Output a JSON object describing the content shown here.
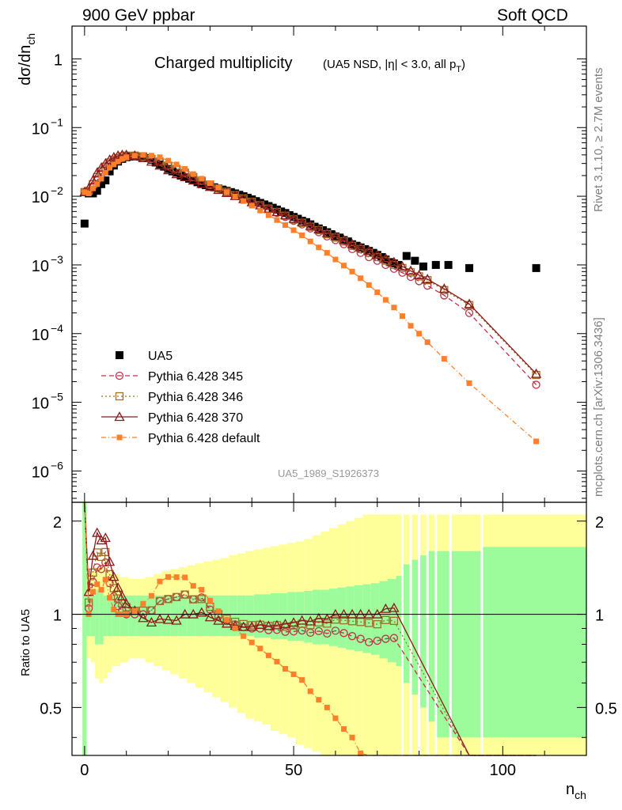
{
  "header": {
    "left": "900 GeV ppbar",
    "right": "Soft QCD"
  },
  "side_labels": {
    "rivet": "Rivet 3.1.10, ≥ 2.7M events",
    "mcplots": "mcplots.cern.ch [arXiv:1306.3436]"
  },
  "chart_data": {
    "type": "scatter",
    "title": "Charged multiplicity",
    "subtitle": "(UA5 NSD, |η| < 3.0, all p_T)",
    "analysis_id": "UA5_1989_S1926373",
    "xlabel": "n_ch",
    "ylabel_main": "dσ/dn_ch",
    "ylabel_ratio": "Ratio to UA5",
    "x_range": [
      -3,
      120
    ],
    "main_y_range": [
      3.5e-07,
      3.0
    ],
    "main_y_scale": "log",
    "ratio_y_range": [
      0.35,
      2.3
    ],
    "x_ticks": [
      0,
      50,
      100
    ],
    "main_y_ticks": [
      "1",
      "10^-1",
      "10^-2",
      "10^-3",
      "10^-4",
      "10^-5",
      "10^-6"
    ],
    "ratio_y_ticks": [
      "0.5",
      "1",
      "2"
    ],
    "legend": {
      "placement": "lower-left",
      "entries": [
        "UA5",
        "Pythia 6.428 345",
        "Pythia 6.428 346",
        "Pythia 6.428 370",
        "Pythia 6.428 default"
      ]
    },
    "series": [
      {
        "name": "UA5",
        "color": "#000000",
        "marker": "filled-square",
        "x": [
          0,
          1,
          2,
          3,
          4,
          5,
          6,
          7,
          8,
          9,
          10,
          11,
          12,
          13,
          14,
          15,
          16,
          17,
          18,
          19,
          20,
          21,
          22,
          23,
          24,
          25,
          26,
          27,
          28,
          29,
          30,
          31,
          32,
          33,
          34,
          35,
          36,
          37,
          38,
          39,
          40,
          41,
          42,
          43,
          44,
          45,
          46,
          47,
          48,
          49,
          50,
          51,
          52,
          53,
          54,
          55,
          56,
          57,
          58,
          59,
          60,
          61,
          62,
          63,
          64,
          65,
          66,
          67,
          68,
          69,
          70,
          71,
          72,
          73,
          74,
          75,
          77,
          79,
          81,
          84,
          87,
          92,
          108
        ],
        "y": [
          0.004,
          0.011,
          0.011,
          0.012,
          0.015,
          0.017,
          0.023,
          0.028,
          0.032,
          0.035,
          0.037,
          0.038,
          0.038,
          0.038,
          0.037,
          0.036,
          0.034,
          0.031,
          0.029,
          0.027,
          0.025,
          0.023,
          0.022,
          0.02,
          0.019,
          0.018,
          0.017,
          0.016,
          0.015,
          0.0145,
          0.014,
          0.0135,
          0.013,
          0.0125,
          0.012,
          0.0115,
          0.011,
          0.0105,
          0.01,
          0.0095,
          0.009,
          0.0085,
          0.008,
          0.0076,
          0.0072,
          0.0068,
          0.0064,
          0.006,
          0.0057,
          0.0053,
          0.005,
          0.0047,
          0.0044,
          0.0042,
          0.0039,
          0.0036,
          0.0034,
          0.0032,
          0.003,
          0.0028,
          0.0026,
          0.0025,
          0.0023,
          0.0022,
          0.002,
          0.0019,
          0.0018,
          0.0017,
          0.0016,
          0.0015,
          0.0014,
          0.0013,
          0.0012,
          0.0011,
          0.00105,
          0.001,
          0.00135,
          0.00115,
          0.00095,
          0.001,
          0.001,
          0.0009,
          0.0009
        ]
      },
      {
        "name": "Pythia 6.428 345",
        "color": "#c0304a",
        "marker": "open-circle",
        "dash": "6,4",
        "x": [
          0,
          1,
          2,
          3,
          4,
          5,
          6,
          7,
          8,
          9,
          10,
          12,
          14,
          16,
          18,
          20,
          22,
          24,
          26,
          28,
          30,
          32,
          34,
          36,
          38,
          40,
          42,
          44,
          46,
          48,
          50,
          52,
          54,
          56,
          58,
          60,
          62,
          64,
          66,
          68,
          70,
          72,
          74,
          76,
          78,
          80,
          82,
          86,
          92,
          108
        ],
        "y": [
          0.0115,
          0.0115,
          0.014,
          0.017,
          0.021,
          0.025,
          0.029,
          0.032,
          0.034,
          0.036,
          0.037,
          0.038,
          0.037,
          0.035,
          0.032,
          0.028,
          0.025,
          0.022,
          0.019,
          0.017,
          0.0145,
          0.0128,
          0.0114,
          0.0102,
          0.0091,
          0.0081,
          0.0072,
          0.0064,
          0.0057,
          0.005,
          0.0044,
          0.0039,
          0.0034,
          0.003,
          0.0026,
          0.0023,
          0.002,
          0.0017,
          0.0015,
          0.0013,
          0.00115,
          0.001,
          0.00088,
          0.00077,
          0.00067,
          0.00058,
          0.0005,
          0.00036,
          0.0002,
          1.8e-05
        ]
      },
      {
        "name": "Pythia 6.428 346",
        "color": "#a07028",
        "marker": "open-square",
        "dash": "2,3",
        "x": [
          0,
          1,
          2,
          3,
          4,
          5,
          6,
          7,
          8,
          9,
          10,
          12,
          14,
          16,
          18,
          20,
          22,
          24,
          26,
          28,
          30,
          32,
          34,
          36,
          38,
          40,
          42,
          44,
          46,
          48,
          50,
          52,
          54,
          56,
          58,
          60,
          62,
          64,
          66,
          68,
          70,
          72,
          74,
          76,
          78,
          80,
          82,
          86,
          92,
          108
        ],
        "y": [
          0.0115,
          0.012,
          0.015,
          0.019,
          0.023,
          0.027,
          0.031,
          0.034,
          0.036,
          0.038,
          0.039,
          0.039,
          0.038,
          0.035,
          0.032,
          0.028,
          0.025,
          0.022,
          0.019,
          0.0168,
          0.0148,
          0.013,
          0.0116,
          0.0104,
          0.0093,
          0.0083,
          0.0074,
          0.0066,
          0.0059,
          0.0052,
          0.0046,
          0.0041,
          0.0036,
          0.0032,
          0.0028,
          0.0025,
          0.0022,
          0.0019,
          0.0017,
          0.0015,
          0.0013,
          0.00115,
          0.001,
          0.0009,
          0.00078,
          0.00068,
          0.0006,
          0.00043,
          0.00026,
          2.5e-05
        ]
      },
      {
        "name": "Pythia 6.428 370",
        "color": "#8b1a1a",
        "marker": "open-triangle",
        "dash": "",
        "x": [
          0,
          1,
          2,
          3,
          4,
          5,
          6,
          7,
          8,
          9,
          10,
          12,
          14,
          16,
          18,
          20,
          22,
          24,
          26,
          28,
          30,
          32,
          34,
          36,
          38,
          40,
          42,
          44,
          46,
          48,
          50,
          52,
          54,
          56,
          58,
          60,
          62,
          64,
          66,
          68,
          70,
          72,
          74,
          76,
          78,
          80,
          82,
          86,
          92,
          108
        ],
        "y": [
          0.0115,
          0.013,
          0.017,
          0.022,
          0.026,
          0.03,
          0.034,
          0.037,
          0.039,
          0.04,
          0.04,
          0.039,
          0.036,
          0.032,
          0.028,
          0.024,
          0.021,
          0.019,
          0.017,
          0.0152,
          0.0137,
          0.0124,
          0.0112,
          0.0101,
          0.0091,
          0.0082,
          0.0074,
          0.0066,
          0.0059,
          0.0053,
          0.0047,
          0.0042,
          0.0037,
          0.0033,
          0.0029,
          0.0026,
          0.0023,
          0.002,
          0.0018,
          0.0016,
          0.0014,
          0.00125,
          0.0011,
          0.00095,
          0.00082,
          0.00071,
          0.00062,
          0.00045,
          0.00027,
          2.6e-05
        ]
      },
      {
        "name": "Pythia 6.428 default",
        "color": "#ff7f2a",
        "marker": "filled-square",
        "dash": "6,3,1,3",
        "x": [
          0,
          1,
          2,
          3,
          4,
          5,
          6,
          7,
          8,
          9,
          10,
          12,
          14,
          16,
          18,
          20,
          22,
          24,
          26,
          28,
          30,
          32,
          34,
          36,
          38,
          40,
          42,
          44,
          46,
          48,
          50,
          52,
          54,
          56,
          58,
          60,
          62,
          64,
          66,
          68,
          70,
          72,
          74,
          76,
          78,
          80,
          82,
          86,
          92,
          108
        ],
        "y": [
          0.0115,
          0.011,
          0.013,
          0.015,
          0.018,
          0.022,
          0.026,
          0.029,
          0.032,
          0.035,
          0.037,
          0.039,
          0.04,
          0.039,
          0.037,
          0.033,
          0.029,
          0.025,
          0.021,
          0.018,
          0.0155,
          0.0133,
          0.0115,
          0.0099,
          0.0085,
          0.0073,
          0.0062,
          0.0053,
          0.0045,
          0.0038,
          0.0032,
          0.0027,
          0.0022,
          0.0018,
          0.0015,
          0.0012,
          0.00098,
          0.0008,
          0.00064,
          0.00051,
          0.0004,
          0.00031,
          0.00024,
          0.00018,
          0.00013,
          0.0001,
          7.5e-05,
          4.3e-05,
          1.9e-05,
          2.7e-06
        ]
      }
    ],
    "ratio_bands": {
      "colors": {
        "inner": "#9cfc9c",
        "outer": "#ffff99"
      },
      "x_edges": [
        -0.5,
        0.5,
        1.5,
        2.5,
        3.5,
        4.5,
        5.5,
        6.5,
        8.5,
        10.5,
        12.5,
        14.5,
        16.5,
        18.5,
        20.5,
        22.5,
        24.5,
        26.5,
        28.5,
        30.5,
        32.5,
        34.5,
        36.5,
        38.5,
        40.5,
        42.5,
        44.5,
        46.5,
        48.5,
        50.5,
        52.5,
        54.5,
        56.5,
        58.5,
        60.5,
        62.5,
        64.5,
        66.5,
        68.5,
        70.5,
        72.5,
        74.5,
        76.0,
        78.0,
        80.0,
        82.0,
        84.0,
        87.5,
        95.0,
        120.0
      ],
      "inner": [
        [
          0.35,
          2.3
        ],
        [
          0.85,
          1.15
        ],
        [
          0.85,
          1.15
        ],
        [
          0.8,
          1.2
        ],
        [
          0.8,
          1.2
        ],
        [
          0.85,
          1.15
        ],
        [
          0.85,
          1.15
        ],
        [
          0.85,
          1.15
        ],
        [
          0.85,
          1.15
        ],
        [
          0.85,
          1.15
        ],
        [
          0.85,
          1.15
        ],
        [
          0.85,
          1.15
        ],
        [
          0.85,
          1.15
        ],
        [
          0.85,
          1.15
        ],
        [
          0.85,
          1.15
        ],
        [
          0.85,
          1.15
        ],
        [
          0.85,
          1.15
        ],
        [
          0.85,
          1.15
        ],
        [
          0.85,
          1.15
        ],
        [
          0.85,
          1.15
        ],
        [
          0.85,
          1.15
        ],
        [
          0.85,
          1.15
        ],
        [
          0.85,
          1.15
        ],
        [
          0.85,
          1.15
        ],
        [
          0.84,
          1.16
        ],
        [
          0.84,
          1.16
        ],
        [
          0.83,
          1.17
        ],
        [
          0.83,
          1.17
        ],
        [
          0.82,
          1.18
        ],
        [
          0.82,
          1.18
        ],
        [
          0.81,
          1.19
        ],
        [
          0.8,
          1.2
        ],
        [
          0.8,
          1.2
        ],
        [
          0.79,
          1.21
        ],
        [
          0.78,
          1.22
        ],
        [
          0.77,
          1.23
        ],
        [
          0.76,
          1.24
        ],
        [
          0.75,
          1.25
        ],
        [
          0.74,
          1.26
        ],
        [
          0.72,
          1.28
        ],
        [
          0.7,
          1.3
        ],
        [
          0.68,
          1.33
        ],
        [
          0.6,
          1.45
        ],
        [
          0.55,
          1.5
        ],
        [
          0.5,
          1.55
        ],
        [
          0.45,
          1.6
        ],
        [
          0.4,
          1.6
        ],
        [
          0.4,
          1.6
        ],
        [
          0.4,
          1.65
        ]
      ],
      "outer": [
        [
          0.35,
          2.3
        ],
        [
          0.72,
          1.35
        ],
        [
          0.7,
          1.38
        ],
        [
          0.62,
          1.42
        ],
        [
          0.6,
          1.45
        ],
        [
          0.62,
          1.42
        ],
        [
          0.65,
          1.38
        ],
        [
          0.68,
          1.35
        ],
        [
          0.7,
          1.32
        ],
        [
          0.72,
          1.3
        ],
        [
          0.72,
          1.3
        ],
        [
          0.7,
          1.32
        ],
        [
          0.68,
          1.35
        ],
        [
          0.66,
          1.38
        ],
        [
          0.64,
          1.4
        ],
        [
          0.62,
          1.42
        ],
        [
          0.6,
          1.44
        ],
        [
          0.58,
          1.46
        ],
        [
          0.56,
          1.48
        ],
        [
          0.54,
          1.5
        ],
        [
          0.52,
          1.52
        ],
        [
          0.5,
          1.55
        ],
        [
          0.48,
          1.57
        ],
        [
          0.46,
          1.6
        ],
        [
          0.45,
          1.62
        ],
        [
          0.44,
          1.64
        ],
        [
          0.42,
          1.66
        ],
        [
          0.41,
          1.68
        ],
        [
          0.4,
          1.7
        ],
        [
          0.38,
          1.72
        ],
        [
          0.37,
          1.75
        ],
        [
          0.36,
          1.8
        ],
        [
          0.35,
          1.85
        ],
        [
          0.35,
          1.9
        ],
        [
          0.35,
          1.95
        ],
        [
          0.35,
          2.0
        ],
        [
          0.35,
          2.05
        ],
        [
          0.35,
          2.1
        ],
        [
          0.35,
          2.1
        ],
        [
          0.35,
          2.1
        ],
        [
          0.35,
          2.1
        ],
        [
          0.35,
          2.1
        ],
        [
          0.35,
          2.1
        ],
        [
          0.35,
          2.1
        ],
        [
          0.35,
          2.1
        ],
        [
          0.35,
          2.1
        ],
        [
          0.35,
          2.1
        ],
        [
          0.35,
          2.1
        ],
        [
          0.35,
          2.1
        ]
      ]
    }
  }
}
